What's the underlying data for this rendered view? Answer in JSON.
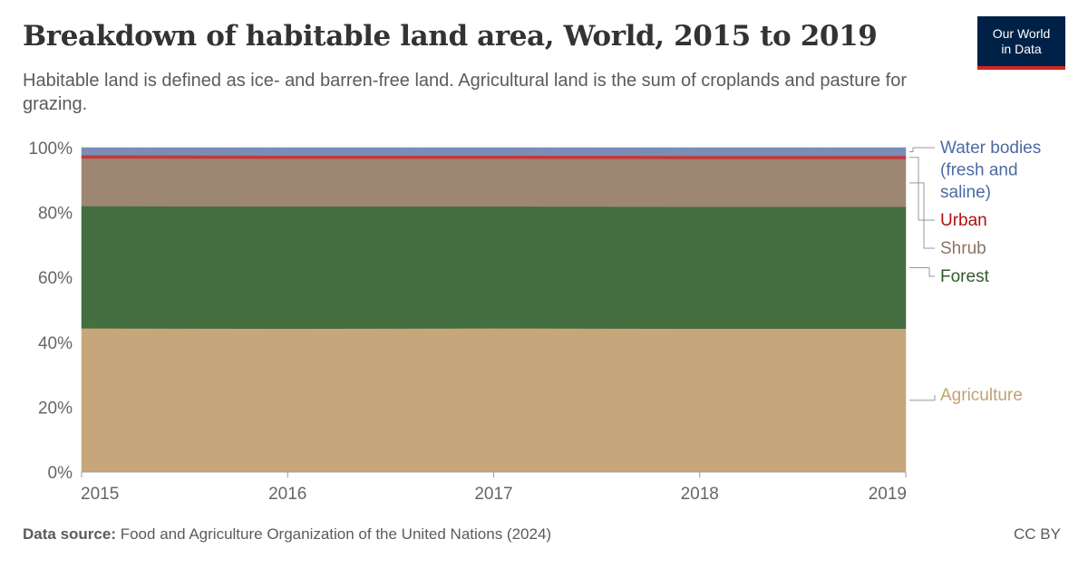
{
  "header": {
    "title": "Breakdown of habitable land area, World, 2015 to 2019",
    "subtitle": "Habitable land is defined as ice- and barren-free land. Agricultural land is the sum of croplands and pasture for grazing."
  },
  "logo": {
    "line1": "Our World",
    "line2": "in Data"
  },
  "footer": {
    "source_label": "Data source:",
    "source_text": "Food and Agriculture Organization of the United Nations (2024)",
    "license": "CC BY"
  },
  "chart_data": {
    "type": "area",
    "stacked": true,
    "x": [
      2015,
      2016,
      2017,
      2018,
      2019
    ],
    "x_tick_labels": [
      "2015",
      "2016",
      "2017",
      "2018",
      "2019"
    ],
    "y_tick_labels": [
      "0%",
      "20%",
      "40%",
      "60%",
      "80%",
      "100%"
    ],
    "ylim": [
      0,
      100
    ],
    "y_unit": "%",
    "grid": "horizontal-dashed",
    "legend": "right",
    "series": [
      {
        "name": "Agriculture",
        "color": "#c8a67b",
        "label_color": "#c2a273",
        "values": [
          44.3,
          44.2,
          44.3,
          44.2,
          44.2
        ]
      },
      {
        "name": "Forest",
        "color": "#456e41",
        "label_color": "#2f5c2b",
        "values": [
          37.7,
          37.7,
          37.6,
          37.6,
          37.6
        ]
      },
      {
        "name": "Shrub",
        "color": "#9d8773",
        "label_color": "#8b7461",
        "values": [
          14.7,
          14.7,
          14.7,
          14.7,
          14.7
        ]
      },
      {
        "name": "Urban",
        "color": "#c13a3a",
        "label_color": "#b20f0f",
        "values": [
          1.0,
          1.0,
          1.0,
          1.0,
          1.0
        ]
      },
      {
        "name": "Water bodies (fresh and saline)",
        "label_lines": [
          "Water bodies",
          "(fresh and",
          "saline)"
        ],
        "color": "#7b8db6",
        "label_color": "#4d6aa3",
        "values": [
          2.3,
          2.4,
          2.4,
          2.5,
          2.5
        ]
      }
    ]
  }
}
